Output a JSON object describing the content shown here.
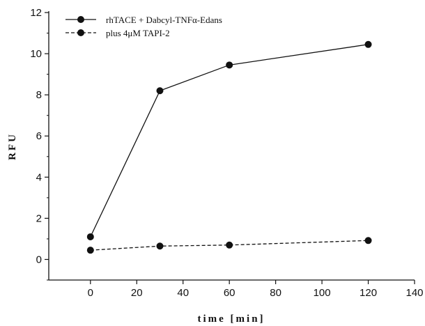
{
  "chart_data": {
    "type": "line",
    "title": "",
    "xlabel": "time [min]",
    "ylabel": "RFU",
    "xlim": [
      -18,
      140
    ],
    "ylim": [
      -1,
      12
    ],
    "xticks": [
      0,
      20,
      40,
      60,
      80,
      100,
      120,
      140
    ],
    "yticks": [
      0,
      2,
      4,
      6,
      8,
      10,
      12
    ],
    "legend_position": "top-left",
    "grid": false,
    "series": [
      {
        "name": "rhTACE + Dabcyl-TNFα-Edans",
        "line_style": "solid",
        "color": "#111111",
        "x": [
          0,
          30,
          60,
          120
        ],
        "y": [
          1.1,
          8.2,
          9.45,
          10.45
        ]
      },
      {
        "name": "plus 4μM TAPI-2",
        "line_style": "dashed",
        "color": "#111111",
        "x": [
          0,
          30,
          60,
          120
        ],
        "y": [
          0.45,
          0.65,
          0.7,
          0.92
        ]
      }
    ]
  }
}
